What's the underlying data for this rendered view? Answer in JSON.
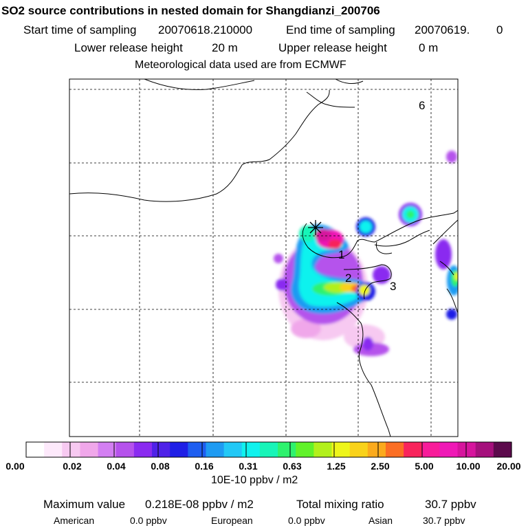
{
  "header": {
    "title": "SO2 source contributions in nested domain for Shangdianzi_200706",
    "start_label": "Start time of sampling",
    "start_value": "20070618.210000",
    "end_label": "End time of sampling",
    "end_value": "20070619.",
    "end_suffix": "0",
    "lower_label": "Lower release height",
    "lower_value": "20 m",
    "upper_label": "Upper release height",
    "upper_value": "0 m",
    "met_text": "Meteorological data used are from ECMWF"
  },
  "map": {
    "region_labels": [
      "1",
      "2",
      "3",
      "6"
    ]
  },
  "colorbar": {
    "colors": [
      "#ffffff",
      "#fde9fb",
      "#f7c9f1",
      "#f0a7ea",
      "#d37ff2",
      "#b552ec",
      "#8a2bf0",
      "#4f22e8",
      "#1f1fe6",
      "#1e5ef0",
      "#1e9bf2",
      "#22c8f6",
      "#10f2ee",
      "#18f5b8",
      "#2ef26e",
      "#61f22a",
      "#b2f01c",
      "#eef51a",
      "#f9d21a",
      "#fbaa1c",
      "#fb6e24",
      "#f8245c",
      "#f81c9a",
      "#ef19b6",
      "#d6149d",
      "#a5107c",
      "#5c0a4c"
    ],
    "labels": [
      "0.00",
      "0.02",
      "0.04",
      "0.08",
      "0.16",
      "0.31",
      "0.63",
      "1.25",
      "2.50",
      "5.00",
      "10.00",
      "20.00"
    ],
    "unit": "10E-10 ppbv / m2"
  },
  "footer": {
    "max_label": "Maximum value",
    "max_value": "0.218E-08 ppbv / m2",
    "total_label": "Total mixing ratio",
    "total_value": "30.7 ppbv",
    "american_label": "American",
    "american_value": "0.0 ppbv",
    "european_label": "European",
    "european_value": "0.0 ppbv",
    "asian_label": "Asian",
    "asian_value": "30.7 ppbv"
  }
}
